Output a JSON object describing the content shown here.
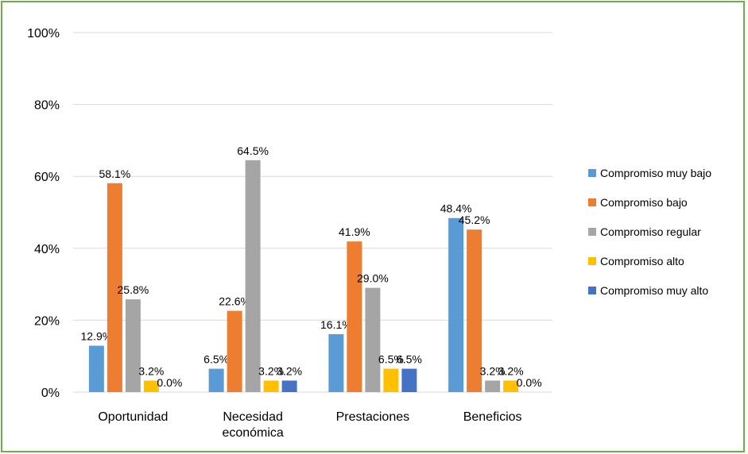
{
  "chart_data": {
    "type": "bar",
    "categories": [
      [
        "Oportunidad"
      ],
      [
        "Necesidad",
        "económica"
      ],
      [
        "Prestaciones"
      ],
      [
        "Beneficios"
      ]
    ],
    "series": [
      {
        "name": "Compromiso muy bajo",
        "color": "#5b9bd5",
        "values": [
          12.9,
          6.5,
          16.1,
          48.4
        ],
        "labels": [
          "12.9%",
          "6.5%",
          "16.1%",
          "48.4%"
        ]
      },
      {
        "name": "Compromiso bajo",
        "color": "#ed7d31",
        "values": [
          58.1,
          22.6,
          41.9,
          45.2
        ],
        "labels": [
          "58.1%",
          "22.6%",
          "41.9%",
          "45.2%"
        ]
      },
      {
        "name": "Compromiso regular",
        "color": "#a5a5a5",
        "values": [
          25.8,
          64.5,
          29.0,
          3.2
        ],
        "labels": [
          "25.8%",
          "64.5%",
          "29.0%",
          "3.2%"
        ]
      },
      {
        "name": "Compromiso alto",
        "color": "#ffc000",
        "values": [
          3.2,
          3.2,
          6.5,
          3.2
        ],
        "labels": [
          "3.2%",
          "3.2%",
          "6.5%",
          "3.2%"
        ]
      },
      {
        "name": "Compromiso muy alto",
        "color": "#4472c4",
        "values": [
          0.0,
          3.2,
          6.5,
          0.0
        ],
        "labels": [
          "0.0%",
          "3.2%",
          "6.5%",
          "0.0%"
        ]
      }
    ],
    "ylim": [
      0,
      100
    ],
    "yticks": [
      "0%",
      "20%",
      "40%",
      "60%",
      "80%",
      "100%"
    ],
    "grid": true,
    "legend_position": "right"
  }
}
